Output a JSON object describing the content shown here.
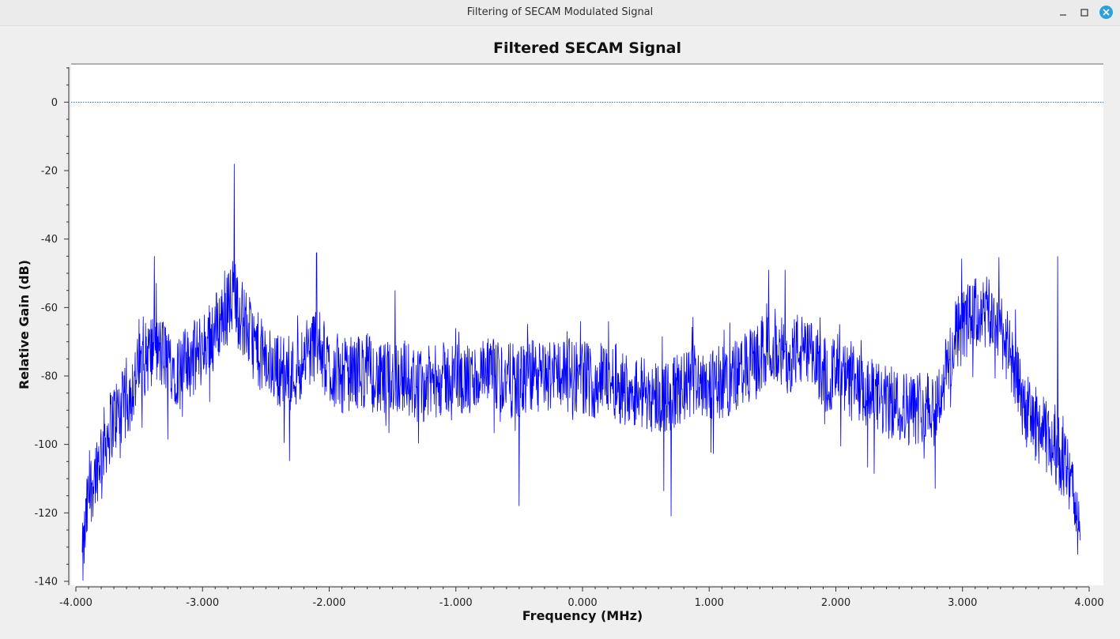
{
  "window": {
    "title": "Filtering of SECAM Modulated Signal",
    "minimize_icon": "minimize-icon",
    "maximize_icon": "maximize-icon",
    "close_icon": "close-icon",
    "close_color": "#2aa1de"
  },
  "chart_data": {
    "type": "line",
    "title": "Filtered SECAM Signal",
    "xlabel": "Frequency (MHz)",
    "ylabel": "Relative Gain (dB)",
    "xlim": [
      -4.0,
      4.0
    ],
    "ylim": [
      -140,
      10
    ],
    "x_ticks": [
      -4.0,
      -3.0,
      -2.0,
      -1.0,
      0.0,
      1.0,
      2.0,
      3.0,
      4.0
    ],
    "x_tick_labels": [
      "-4.000",
      "-3.000",
      "-2.000",
      "-1.000",
      "0.000",
      "1.000",
      "2.000",
      "3.000",
      "4.000"
    ],
    "y_ticks": [
      0,
      -20,
      -40,
      -60,
      -80,
      -100,
      -120,
      -140
    ],
    "y_tick_labels": [
      "0",
      "-20",
      "-40",
      "-60",
      "-80",
      "-100",
      "-120",
      "-140"
    ],
    "reference_line": {
      "y": 0,
      "color": "#1f6fb0",
      "style": "dotted"
    },
    "grid": false,
    "legend": "none",
    "series": [
      {
        "color": "#0000ff",
        "envelope_x": [
          -3.95,
          -3.9,
          -3.8,
          -3.7,
          -3.6,
          -3.5,
          -3.4,
          -3.3,
          -3.2,
          -3.1,
          -3.0,
          -2.9,
          -2.8,
          -2.75,
          -2.7,
          -2.6,
          -2.5,
          -2.4,
          -2.3,
          -2.2,
          -2.1,
          -2.0,
          -1.9,
          -1.8,
          -1.7,
          -1.6,
          -1.5,
          -1.4,
          -1.3,
          -1.2,
          -1.1,
          -1.0,
          -0.9,
          -0.8,
          -0.7,
          -0.6,
          -0.5,
          -0.4,
          -0.3,
          -0.2,
          -0.1,
          0.0,
          0.1,
          0.2,
          0.3,
          0.4,
          0.5,
          0.6,
          0.7,
          0.8,
          0.9,
          1.0,
          1.1,
          1.2,
          1.3,
          1.4,
          1.5,
          1.6,
          1.7,
          1.8,
          1.9,
          2.0,
          2.1,
          2.2,
          2.3,
          2.4,
          2.5,
          2.6,
          2.7,
          2.8,
          2.9,
          3.0,
          3.1,
          3.2,
          3.3,
          3.4,
          3.5,
          3.6,
          3.7,
          3.75,
          3.8,
          3.9,
          3.93
        ],
        "envelope_y": [
          -135,
          -115,
          -102,
          -92,
          -88,
          -78,
          -72,
          -74,
          -78,
          -76,
          -72,
          -66,
          -60,
          -55,
          -62,
          -70,
          -76,
          -78,
          -80,
          -75,
          -70,
          -78,
          -80,
          -79,
          -78,
          -82,
          -80,
          -80,
          -83,
          -82,
          -81,
          -80,
          -82,
          -80,
          -80,
          -81,
          -82,
          -80,
          -81,
          -78,
          -80,
          -80,
          -82,
          -80,
          -83,
          -84,
          -85,
          -86,
          -86,
          -84,
          -80,
          -82,
          -82,
          -80,
          -78,
          -75,
          -70,
          -75,
          -72,
          -75,
          -78,
          -80,
          -82,
          -85,
          -86,
          -88,
          -88,
          -90,
          -88,
          -88,
          -75,
          -65,
          -62,
          -62,
          -65,
          -78,
          -90,
          -95,
          -100,
          -102,
          -105,
          -118,
          -132
        ],
        "spikes": [
          {
            "x": -2.75,
            "y": -18
          },
          {
            "x": -3.38,
            "y": -45
          },
          {
            "x": -2.1,
            "y": -44
          },
          {
            "x": -1.48,
            "y": -55
          },
          {
            "x": 1.47,
            "y": -49
          },
          {
            "x": 1.6,
            "y": -49
          },
          {
            "x": 3.75,
            "y": -45
          },
          {
            "x": -0.5,
            "y": -118
          },
          {
            "x": 0.7,
            "y": -121
          },
          {
            "x": -3.65,
            "y": -104
          }
        ]
      }
    ]
  }
}
